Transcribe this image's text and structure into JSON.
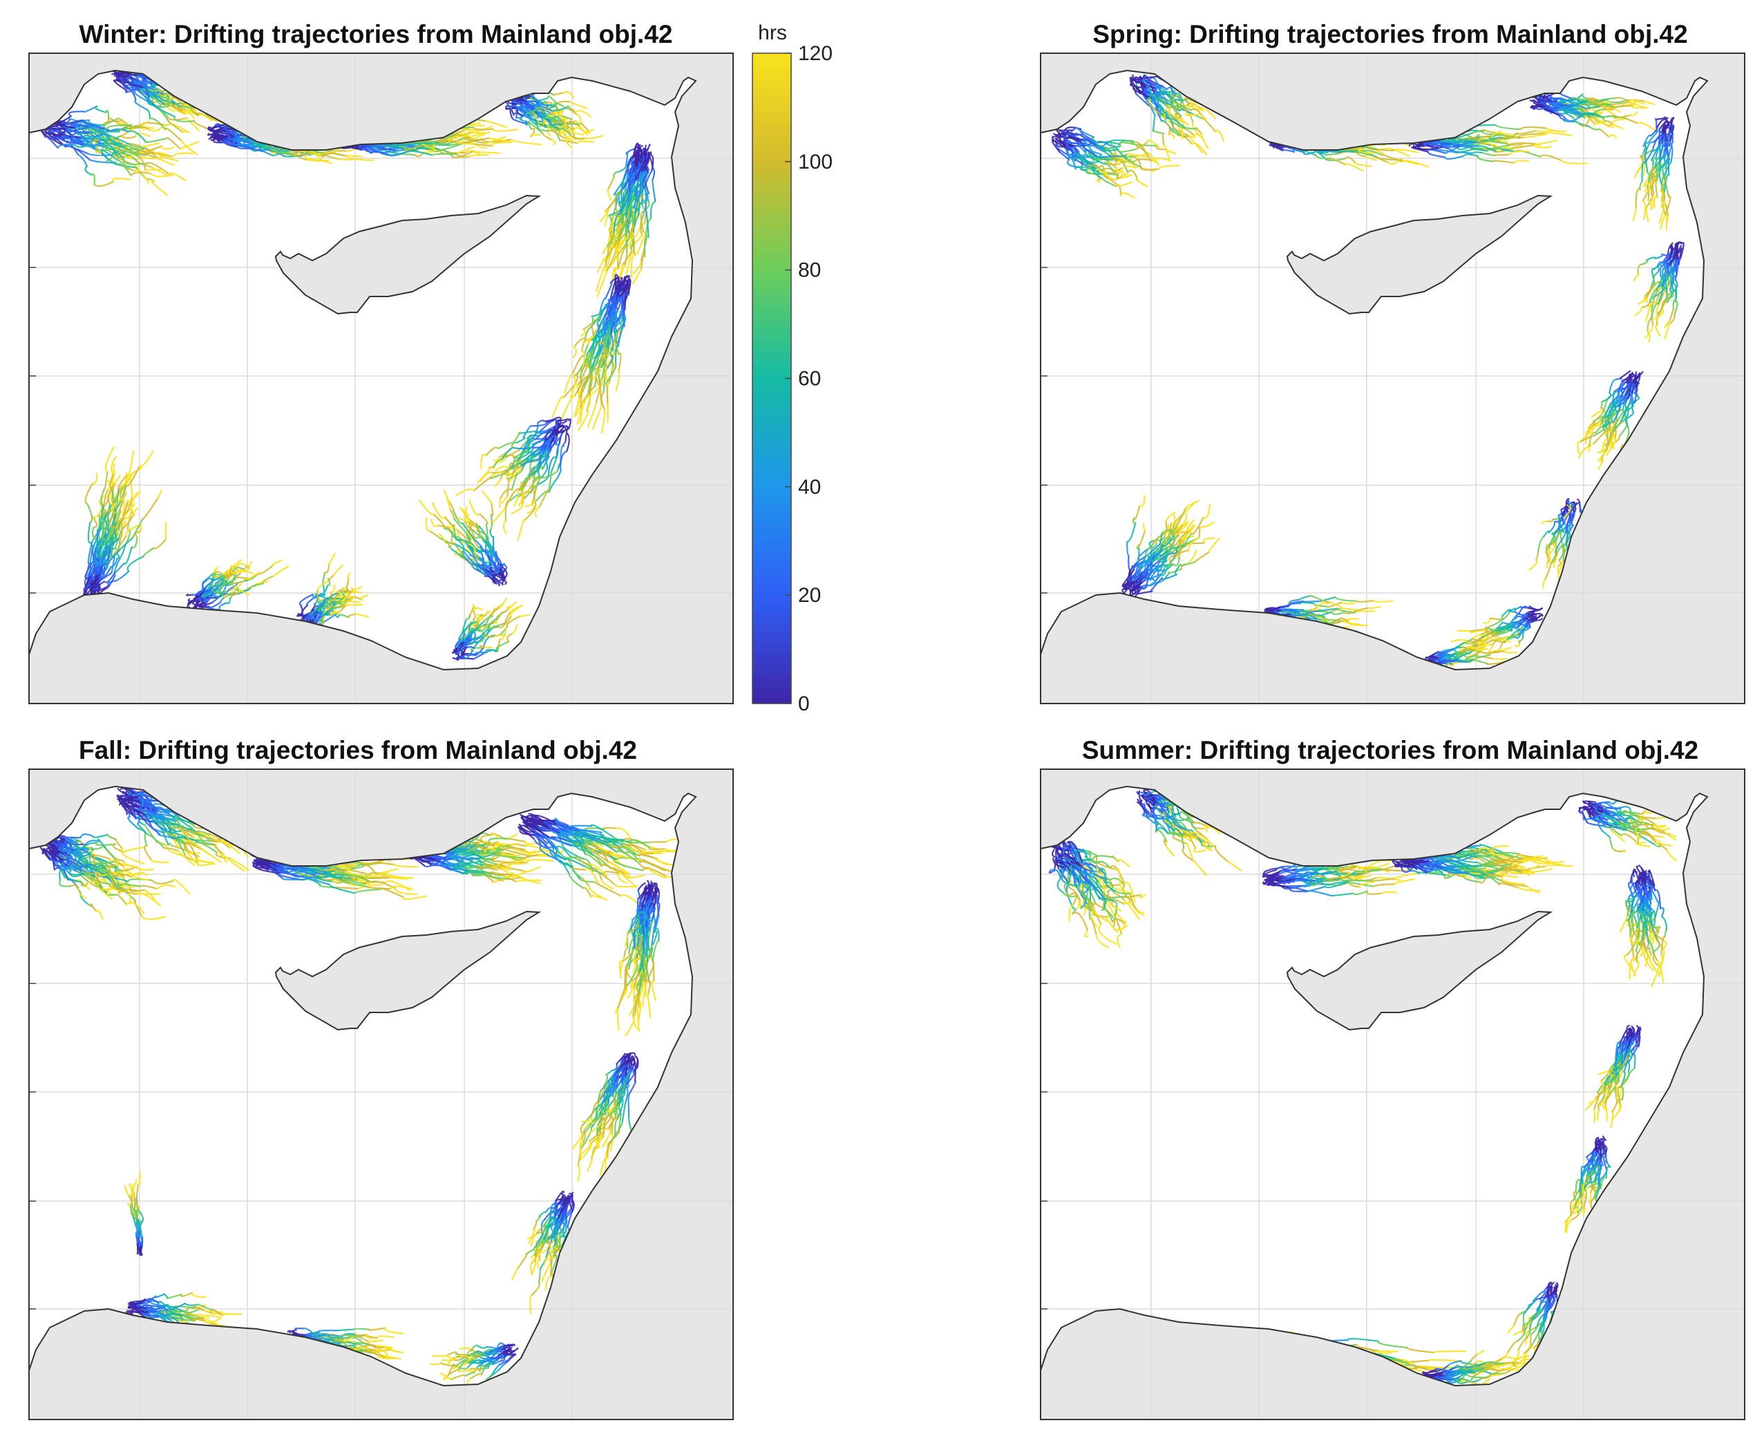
{
  "panels": [
    {
      "id": "winter",
      "title": "Winter: Drifting trajectories from Mainland obj.42",
      "season": "winter"
    },
    {
      "id": "spring",
      "title": "Spring: Drifting trajectories from Mainland obj.42",
      "season": "spring"
    },
    {
      "id": "fall",
      "title": "Fall: Drifting trajectories from Mainland obj.42",
      "season": "fall"
    },
    {
      "id": "summer",
      "title": "Summer: Drifting trajectories from Mainland obj.42",
      "season": "summer"
    }
  ],
  "colorbar": {
    "label": "hrs",
    "min": 0,
    "max": 120,
    "ticks": [
      "0",
      "20",
      "40",
      "60",
      "80",
      "100",
      "120"
    ],
    "colormap": [
      "#3e26a8",
      "#2f5ff6",
      "#1e96ea",
      "#16bba4",
      "#6ccd5b",
      "#d3bb2f",
      "#f9e21c"
    ]
  },
  "colors": {
    "land": "#e6e6e6",
    "sea": "#ffffff",
    "coastline": "#333333",
    "grid": "#dcdcdc"
  }
}
